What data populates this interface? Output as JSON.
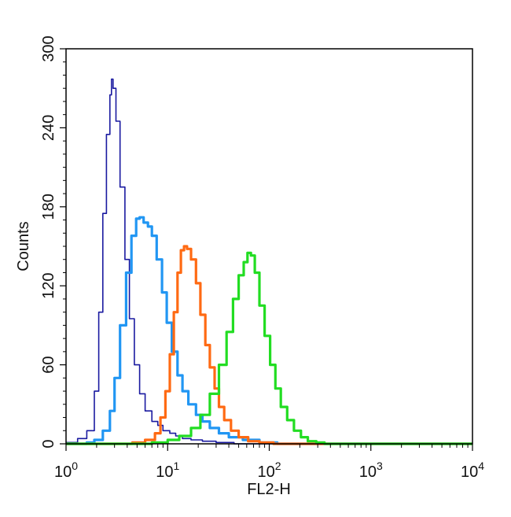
{
  "chart_data": {
    "type": "line",
    "title": "",
    "xlabel": "FL2-H",
    "ylabel": "Counts",
    "x_scale": "log",
    "xlim": [
      1,
      10000
    ],
    "ylim": [
      0,
      300
    ],
    "x_ticks": [
      {
        "base": "10",
        "exp": "0"
      },
      {
        "base": "10",
        "exp": "1"
      },
      {
        "base": "10",
        "exp": "2"
      },
      {
        "base": "10",
        "exp": "3"
      },
      {
        "base": "10",
        "exp": "4"
      }
    ],
    "y_ticks": [
      "0",
      "60",
      "120",
      "180",
      "240",
      "300"
    ],
    "y_tick_values": [
      0,
      60,
      120,
      180,
      240,
      300
    ],
    "grid": false,
    "legend": false,
    "series": [
      {
        "color": "#1a1aa0",
        "points": [
          [
            1.0,
            1
          ],
          [
            1.3,
            4
          ],
          [
            1.6,
            10
          ],
          [
            1.9,
            40
          ],
          [
            2.1,
            100
          ],
          [
            2.3,
            175
          ],
          [
            2.5,
            235
          ],
          [
            2.7,
            265
          ],
          [
            2.8,
            277
          ],
          [
            2.9,
            270
          ],
          [
            3.1,
            245
          ],
          [
            3.4,
            195
          ],
          [
            3.8,
            140
          ],
          [
            4.2,
            95
          ],
          [
            4.7,
            60
          ],
          [
            5.3,
            38
          ],
          [
            6.0,
            25
          ],
          [
            7.0,
            17
          ],
          [
            8.0,
            14
          ],
          [
            9.0,
            10
          ],
          [
            10.5,
            8
          ],
          [
            12,
            6
          ],
          [
            14,
            4
          ],
          [
            17,
            3
          ],
          [
            22,
            2
          ],
          [
            30,
            1
          ],
          [
            45,
            0
          ],
          [
            100,
            0
          ],
          [
            10000,
            0
          ]
        ]
      },
      {
        "color": "#2196f3",
        "points": [
          [
            1.0,
            0
          ],
          [
            1.6,
            1
          ],
          [
            1.9,
            3
          ],
          [
            2.3,
            10
          ],
          [
            2.7,
            25
          ],
          [
            3.0,
            50
          ],
          [
            3.4,
            90
          ],
          [
            3.9,
            130
          ],
          [
            4.4,
            158
          ],
          [
            4.9,
            171
          ],
          [
            5.3,
            172
          ],
          [
            5.8,
            168
          ],
          [
            6.4,
            165
          ],
          [
            7.0,
            158
          ],
          [
            7.8,
            140
          ],
          [
            8.8,
            115
          ],
          [
            9.8,
            92
          ],
          [
            11,
            70
          ],
          [
            12.5,
            52
          ],
          [
            14,
            40
          ],
          [
            16,
            30
          ],
          [
            19,
            22
          ],
          [
            22,
            17
          ],
          [
            26,
            12
          ],
          [
            32,
            8
          ],
          [
            40,
            5
          ],
          [
            55,
            3
          ],
          [
            80,
            1
          ],
          [
            120,
            0
          ],
          [
            10000,
            0
          ]
        ]
      },
      {
        "color": "#ff6a13",
        "points": [
          [
            1.0,
            0
          ],
          [
            3.5,
            0
          ],
          [
            4.5,
            1
          ],
          [
            6,
            3
          ],
          [
            7.5,
            8
          ],
          [
            8.5,
            20
          ],
          [
            9.5,
            40
          ],
          [
            10.5,
            68
          ],
          [
            11.5,
            100
          ],
          [
            12.5,
            130
          ],
          [
            13.5,
            147
          ],
          [
            14.5,
            150
          ],
          [
            15.5,
            148
          ],
          [
            17,
            140
          ],
          [
            19,
            122
          ],
          [
            21,
            98
          ],
          [
            23.5,
            75
          ],
          [
            26,
            58
          ],
          [
            29,
            42
          ],
          [
            32,
            28
          ],
          [
            36,
            18
          ],
          [
            42,
            10
          ],
          [
            50,
            5
          ],
          [
            62,
            2
          ],
          [
            80,
            1
          ],
          [
            110,
            0
          ],
          [
            10000,
            0
          ]
        ]
      },
      {
        "color": "#22dd22",
        "points": [
          [
            1.0,
            0
          ],
          [
            5,
            0
          ],
          [
            7,
            1
          ],
          [
            10,
            3
          ],
          [
            13,
            6
          ],
          [
            17,
            12
          ],
          [
            21,
            22
          ],
          [
            26,
            38
          ],
          [
            32,
            60
          ],
          [
            38,
            85
          ],
          [
            44,
            110
          ],
          [
            50,
            128
          ],
          [
            56,
            138
          ],
          [
            61,
            145
          ],
          [
            66,
            143
          ],
          [
            72,
            130
          ],
          [
            80,
            105
          ],
          [
            90,
            82
          ],
          [
            102,
            60
          ],
          [
            115,
            42
          ],
          [
            130,
            28
          ],
          [
            150,
            18
          ],
          [
            175,
            10
          ],
          [
            205,
            5
          ],
          [
            240,
            2
          ],
          [
            290,
            1
          ],
          [
            350,
            0
          ],
          [
            10000,
            0
          ]
        ]
      }
    ]
  }
}
